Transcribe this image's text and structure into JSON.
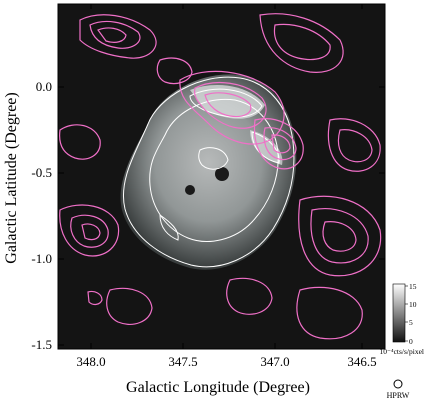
{
  "figure": {
    "xlabel": "Galactic Longitude (Degree)",
    "ylabel": "Galactic Latitude (Degree)",
    "x_ticks": [
      "348.0",
      "347.5",
      "347.0",
      "346.5"
    ],
    "y_ticks": [
      "0.0",
      "-0.5",
      "-1.0",
      "-1.5"
    ],
    "colorbar": {
      "ticks": [
        "15",
        "10",
        "5",
        "0"
      ],
      "range": [
        0,
        15
      ],
      "unit_label": "10⁻⁴cts/s/pixel"
    },
    "beam_label": "HPRW",
    "colors": {
      "background_map": "#111111",
      "xray_contour": "#ffffff",
      "radio_contour": "#f070c8",
      "frame": "#000000"
    }
  }
}
